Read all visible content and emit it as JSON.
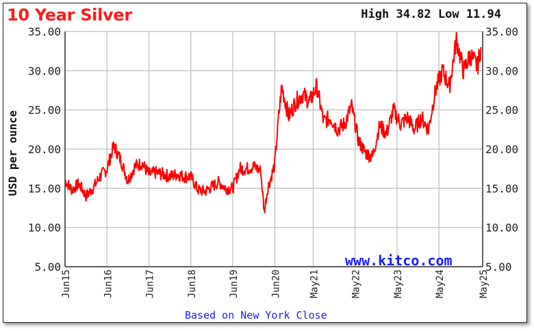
{
  "header": {
    "title": "10 Year Silver",
    "high_low": "High 34.82 Low 11.94"
  },
  "footer": {
    "source": "Based on New York Close"
  },
  "watermark": "www.kitco.com",
  "colors": {
    "line": "#ff0000",
    "title": "#ff1a1a",
    "link": "#1a1aff",
    "grid": "#c8c8c8"
  },
  "chart_data": {
    "type": "line",
    "title": "10 Year Silver",
    "ylabel": "USD per ounce",
    "xlabel": "",
    "ylim": [
      5,
      35
    ],
    "yticks": [
      "5.00",
      "10.00",
      "15.00",
      "20.00",
      "25.00",
      "30.00",
      "35.00"
    ],
    "xticks": [
      "Jun15",
      "Jun16",
      "Jun17",
      "Jun18",
      "Jun19",
      "Jun20",
      "May21",
      "May22",
      "May23",
      "May24",
      "May25"
    ],
    "grid": true,
    "series": [
      {
        "x": [
          "2015-06",
          "2015-08",
          "2015-10",
          "2015-12",
          "2016-02",
          "2016-04",
          "2016-06",
          "2016-08",
          "2016-10",
          "2016-12",
          "2017-02",
          "2017-04",
          "2017-06",
          "2017-08",
          "2017-10",
          "2017-12",
          "2018-02",
          "2018-04",
          "2018-06",
          "2018-08",
          "2018-10",
          "2018-12",
          "2019-02",
          "2019-04",
          "2019-06",
          "2019-08",
          "2019-10",
          "2019-12",
          "2020-02",
          "2020-03",
          "2020-04",
          "2020-05",
          "2020-06",
          "2020-07",
          "2020-08",
          "2020-10",
          "2020-12",
          "2021-02",
          "2021-04",
          "2021-06",
          "2021-08",
          "2021-10",
          "2021-12",
          "2022-02",
          "2022-04",
          "2022-06",
          "2022-08",
          "2022-10",
          "2022-12",
          "2023-02",
          "2023-04",
          "2023-06",
          "2023-08",
          "2023-10",
          "2023-12",
          "2024-02",
          "2024-04",
          "2024-06",
          "2024-08",
          "2024-10",
          "2024-12",
          "2025-02",
          "2025-04",
          "2025-05"
        ],
        "values": [
          16.0,
          14.8,
          15.6,
          14.0,
          15.0,
          16.5,
          17.5,
          20.5,
          18.5,
          16.0,
          17.8,
          18.2,
          16.8,
          17.0,
          16.8,
          16.5,
          16.8,
          16.5,
          16.5,
          14.8,
          14.6,
          15.2,
          15.8,
          15.0,
          15.0,
          17.5,
          17.5,
          17.8,
          17.2,
          12.0,
          15.0,
          16.5,
          18.0,
          23.5,
          28.0,
          24.2,
          26.0,
          27.0,
          26.0,
          28.0,
          23.5,
          24.0,
          22.5,
          23.2,
          25.5,
          21.0,
          19.5,
          19.0,
          23.0,
          22.0,
          25.0,
          23.2,
          24.0,
          22.5,
          24.0,
          22.5,
          27.5,
          30.0,
          28.0,
          34.0,
          30.0,
          32.0,
          30.5,
          33.0
        ]
      }
    ],
    "annotation_high": 34.82,
    "annotation_low": 11.94
  }
}
